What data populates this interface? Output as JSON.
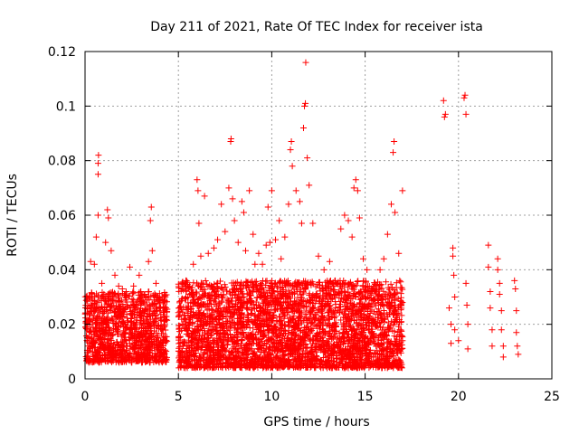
{
  "chart_data": {
    "type": "scatter",
    "title": "Day 211 of 2021, Rate Of TEC Index for receiver ista",
    "xlabel": "GPS time / hours",
    "ylabel": "ROTI / TECUs",
    "xlim": [
      0,
      25
    ],
    "ylim": [
      0,
      0.12
    ],
    "xticks": [
      0,
      5,
      10,
      15,
      20,
      25
    ],
    "xtick_labels": [
      "0",
      "5",
      "10",
      "15",
      "20",
      "25"
    ],
    "yticks": [
      0,
      0.02,
      0.04,
      0.06,
      0.08,
      0.1,
      0.12
    ],
    "ytick_labels": [
      "0",
      "0.02",
      "0.04",
      "0.06",
      "0.08",
      "0.1",
      "0.12"
    ],
    "grid": true,
    "marker": "+",
    "series": [
      {
        "name": "ROTI",
        "color": "#ff0000",
        "points": [
          [
            0.1,
            0.03
          ],
          [
            0.3,
            0.043
          ],
          [
            0.5,
            0.042
          ],
          [
            0.6,
            0.052
          ],
          [
            0.7,
            0.06
          ],
          [
            0.7,
            0.075
          ],
          [
            0.7,
            0.079
          ],
          [
            0.72,
            0.082
          ],
          [
            0.9,
            0.035
          ],
          [
            1.1,
            0.05
          ],
          [
            1.2,
            0.062
          ],
          [
            1.25,
            0.059
          ],
          [
            1.4,
            0.047
          ],
          [
            1.6,
            0.038
          ],
          [
            1.8,
            0.034
          ],
          [
            2.0,
            0.033
          ],
          [
            2.2,
            0.032
          ],
          [
            2.4,
            0.041
          ],
          [
            2.6,
            0.034
          ],
          [
            2.9,
            0.038
          ],
          [
            3.2,
            0.031
          ],
          [
            3.4,
            0.043
          ],
          [
            3.5,
            0.058
          ],
          [
            3.55,
            0.063
          ],
          [
            3.6,
            0.047
          ],
          [
            3.8,
            0.035
          ],
          [
            4.0,
            0.029
          ],
          [
            4.2,
            0.026
          ],
          [
            5.2,
            0.033
          ],
          [
            5.4,
            0.036
          ],
          [
            5.6,
            0.034
          ],
          [
            5.8,
            0.042
          ],
          [
            6.0,
            0.073
          ],
          [
            6.05,
            0.069
          ],
          [
            6.1,
            0.057
          ],
          [
            6.2,
            0.045
          ],
          [
            6.4,
            0.067
          ],
          [
            6.6,
            0.046
          ],
          [
            6.9,
            0.048
          ],
          [
            7.1,
            0.051
          ],
          [
            7.3,
            0.064
          ],
          [
            7.5,
            0.054
          ],
          [
            7.7,
            0.07
          ],
          [
            7.8,
            0.087
          ],
          [
            7.82,
            0.088
          ],
          [
            7.9,
            0.066
          ],
          [
            8.0,
            0.058
          ],
          [
            8.2,
            0.05
          ],
          [
            8.4,
            0.065
          ],
          [
            8.5,
            0.061
          ],
          [
            8.6,
            0.047
          ],
          [
            8.8,
            0.069
          ],
          [
            9.0,
            0.053
          ],
          [
            9.1,
            0.042
          ],
          [
            9.3,
            0.046
          ],
          [
            9.5,
            0.042
          ],
          [
            9.7,
            0.049
          ],
          [
            9.8,
            0.063
          ],
          [
            9.9,
            0.05
          ],
          [
            10.0,
            0.069
          ],
          [
            10.2,
            0.051
          ],
          [
            10.4,
            0.058
          ],
          [
            10.5,
            0.044
          ],
          [
            10.7,
            0.052
          ],
          [
            10.9,
            0.064
          ],
          [
            11.0,
            0.084
          ],
          [
            11.05,
            0.087
          ],
          [
            11.1,
            0.078
          ],
          [
            11.3,
            0.069
          ],
          [
            11.5,
            0.065
          ],
          [
            11.6,
            0.057
          ],
          [
            11.7,
            0.092
          ],
          [
            11.75,
            0.1
          ],
          [
            11.8,
            0.101
          ],
          [
            11.82,
            0.116
          ],
          [
            11.9,
            0.081
          ],
          [
            12.0,
            0.071
          ],
          [
            12.2,
            0.057
          ],
          [
            12.5,
            0.045
          ],
          [
            12.8,
            0.04
          ],
          [
            13.1,
            0.043
          ],
          [
            13.4,
            0.036
          ],
          [
            13.7,
            0.055
          ],
          [
            13.9,
            0.06
          ],
          [
            14.1,
            0.058
          ],
          [
            14.3,
            0.052
          ],
          [
            14.4,
            0.07
          ],
          [
            14.5,
            0.073
          ],
          [
            14.6,
            0.069
          ],
          [
            14.7,
            0.059
          ],
          [
            14.9,
            0.044
          ],
          [
            15.1,
            0.04
          ],
          [
            15.3,
            0.032
          ],
          [
            15.6,
            0.034
          ],
          [
            15.8,
            0.04
          ],
          [
            16.0,
            0.044
          ],
          [
            16.2,
            0.053
          ],
          [
            16.4,
            0.064
          ],
          [
            16.5,
            0.083
          ],
          [
            16.55,
            0.087
          ],
          [
            16.6,
            0.061
          ],
          [
            16.8,
            0.046
          ],
          [
            17.0,
            0.069
          ],
          [
            17.0,
            0.028
          ],
          [
            17.0,
            0.014
          ],
          [
            19.2,
            0.102
          ],
          [
            19.25,
            0.096
          ],
          [
            19.3,
            0.097
          ],
          [
            19.5,
            0.026
          ],
          [
            19.6,
            0.02
          ],
          [
            19.6,
            0.013
          ],
          [
            19.7,
            0.048
          ],
          [
            19.7,
            0.045
          ],
          [
            19.75,
            0.038
          ],
          [
            19.8,
            0.03
          ],
          [
            19.8,
            0.018
          ],
          [
            20.0,
            0.014
          ],
          [
            20.3,
            0.103
          ],
          [
            20.35,
            0.104
          ],
          [
            20.4,
            0.097
          ],
          [
            20.4,
            0.035
          ],
          [
            20.45,
            0.027
          ],
          [
            20.5,
            0.02
          ],
          [
            20.5,
            0.011
          ],
          [
            21.6,
            0.049
          ],
          [
            21.6,
            0.041
          ],
          [
            21.7,
            0.032
          ],
          [
            21.7,
            0.026
          ],
          [
            21.8,
            0.018
          ],
          [
            21.8,
            0.012
          ],
          [
            22.1,
            0.044
          ],
          [
            22.1,
            0.04
          ],
          [
            22.2,
            0.035
          ],
          [
            22.2,
            0.031
          ],
          [
            22.3,
            0.025
          ],
          [
            22.3,
            0.018
          ],
          [
            22.4,
            0.012
          ],
          [
            22.4,
            0.008
          ],
          [
            23.0,
            0.036
          ],
          [
            23.05,
            0.033
          ],
          [
            23.1,
            0.025
          ],
          [
            23.1,
            0.017
          ],
          [
            23.15,
            0.012
          ],
          [
            23.2,
            0.009
          ]
        ],
        "dense_bands": [
          {
            "x_start": 0.0,
            "x_end": 4.4,
            "y_low": 0.006,
            "y_high": 0.032,
            "count": 1100
          },
          {
            "x_start": 5.0,
            "x_end": 17.0,
            "y_low": 0.004,
            "y_high": 0.036,
            "count": 3400
          }
        ]
      }
    ]
  }
}
